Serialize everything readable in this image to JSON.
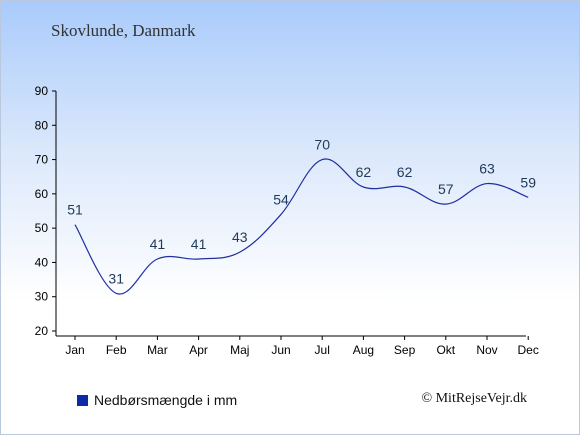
{
  "header": {
    "location": "Skovlunde, Danmark"
  },
  "legend": {
    "label": "Nedbørsmængde i mm",
    "color": "#0b2aa8"
  },
  "footer": {
    "copyright": "© MitRejseVejr.dk"
  },
  "chart_data": {
    "type": "line",
    "categories": [
      "Jan",
      "Feb",
      "Mar",
      "Apr",
      "Maj",
      "Jun",
      "Jul",
      "Aug",
      "Sep",
      "Okt",
      "Nov",
      "Dec"
    ],
    "series": [
      {
        "values": [
          51,
          31,
          41,
          41,
          43,
          54,
          70,
          62,
          62,
          57,
          63,
          59
        ],
        "color": "#1f2fa0"
      }
    ],
    "yticks": [
      20,
      30,
      40,
      50,
      60,
      70,
      80,
      90
    ],
    "ylim": [
      20,
      90
    ],
    "grid": false,
    "legend_position": "bottom-left"
  }
}
